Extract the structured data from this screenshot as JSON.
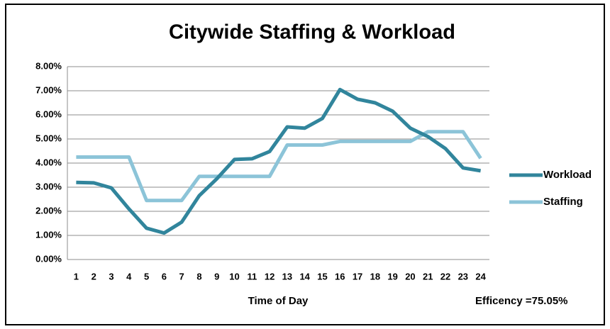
{
  "chart_data": {
    "type": "line",
    "title": "Citywide Staffing & Workload",
    "xlabel": "Time of Day",
    "annotation": "Efficency =75.05%",
    "categories": [
      "1",
      "2",
      "3",
      "4",
      "5",
      "6",
      "7",
      "8",
      "9",
      "10",
      "11",
      "12",
      "13",
      "14",
      "15",
      "16",
      "17",
      "18",
      "19",
      "20",
      "21",
      "22",
      "23",
      "24"
    ],
    "series": [
      {
        "name": "Workload",
        "color": "#31859c",
        "values": [
          3.2,
          3.18,
          2.97,
          2.1,
          1.3,
          1.1,
          1.55,
          2.65,
          3.35,
          4.15,
          4.18,
          4.48,
          5.5,
          5.45,
          5.85,
          7.05,
          6.65,
          6.5,
          6.15,
          5.45,
          5.1,
          4.6,
          3.8,
          3.68
        ]
      },
      {
        "name": "Staffing",
        "color": "#8cc4d8",
        "values": [
          4.25,
          4.25,
          4.25,
          4.25,
          2.45,
          2.45,
          2.45,
          3.45,
          3.45,
          3.45,
          3.45,
          3.45,
          4.75,
          4.75,
          4.75,
          4.9,
          4.9,
          4.9,
          4.9,
          4.9,
          5.3,
          5.3,
          5.3,
          4.2
        ]
      }
    ],
    "ylim": [
      0,
      8
    ],
    "yticks": [
      {
        "value": 0,
        "label": "0.00%"
      },
      {
        "value": 1,
        "label": "1.00%"
      },
      {
        "value": 2,
        "label": "2.00%"
      },
      {
        "value": 3,
        "label": "3.00%"
      },
      {
        "value": 4,
        "label": "4.00%"
      },
      {
        "value": 5,
        "label": "5.00%"
      },
      {
        "value": 6,
        "label": "6.00%"
      },
      {
        "value": 7,
        "label": "7.00%"
      },
      {
        "value": 8,
        "label": "8.00%"
      }
    ],
    "grid": true,
    "legend": "right"
  }
}
